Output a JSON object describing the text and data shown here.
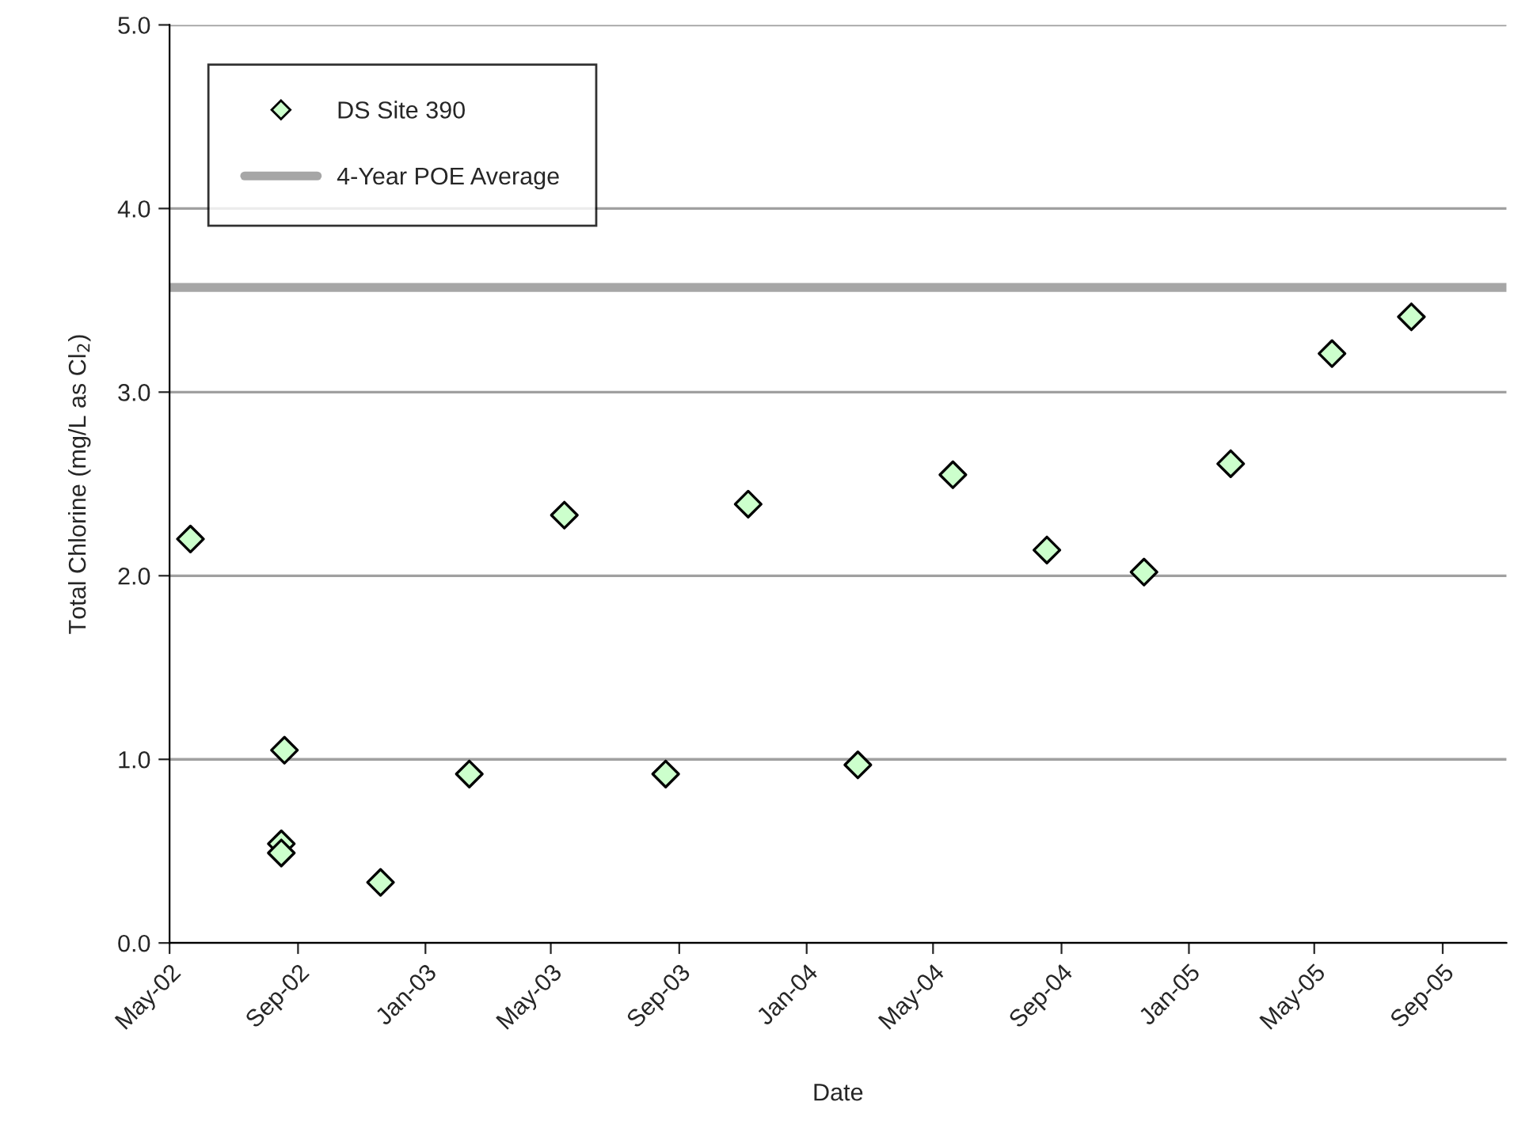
{
  "chart_data": {
    "type": "scatter",
    "xlabel": "Date",
    "ylabel": "Total Chlorine (mg/L as Cl$_{2}$)",
    "x": [
      "2002-05-21",
      "2002-08-19",
      "2002-08-16",
      "2002-08-16",
      "2002-11-19",
      "2003-02-12",
      "2003-05-14",
      "2003-08-19",
      "2003-11-06",
      "2004-02-19",
      "2004-05-20",
      "2004-08-18",
      "2004-11-19",
      "2005-02-10",
      "2005-05-18",
      "2005-08-02"
    ],
    "series": [
      {
        "name": "DS Site 390",
        "color": "#ccffcc",
        "values": [
          2.2,
          1.05,
          0.54,
          0.49,
          0.33,
          0.92,
          2.33,
          0.92,
          2.39,
          0.97,
          2.55,
          2.14,
          2.02,
          2.61,
          3.21,
          3.41
        ]
      }
    ],
    "ref_lines": [
      {
        "axis": "y",
        "value": 3.57,
        "label": "4-Year POE Average",
        "color": "#a6a6a6",
        "line_style": "solid"
      }
    ],
    "xlim": [
      "2002-05-01",
      "2005-11-01"
    ],
    "xticks": [
      {
        "value": "2002-05-01",
        "label": "May-02"
      },
      {
        "value": "2002-09-01",
        "label": "Sep-02"
      },
      {
        "value": "2003-01-01",
        "label": "Jan-03"
      },
      {
        "value": "2003-05-01",
        "label": "May-03"
      },
      {
        "value": "2003-09-01",
        "label": "Sep-03"
      },
      {
        "value": "2004-01-01",
        "label": "Jan-04"
      },
      {
        "value": "2004-05-01",
        "label": "May-04"
      },
      {
        "value": "2004-09-01",
        "label": "Sep-04"
      },
      {
        "value": "2005-01-01",
        "label": "Jan-05"
      },
      {
        "value": "2005-05-01",
        "label": "May-05"
      },
      {
        "value": "2005-09-01",
        "label": "Sep-05"
      }
    ],
    "ylim": [
      0,
      5
    ],
    "yticks": [
      {
        "value": 0,
        "label": "0.0"
      },
      {
        "value": 1,
        "label": "1.0"
      },
      {
        "value": 2,
        "label": "2.0"
      },
      {
        "value": 3,
        "label": "3.0"
      },
      {
        "value": 4,
        "label": "4.0"
      },
      {
        "value": 5,
        "label": "5.0"
      }
    ],
    "grid": "y",
    "legend": "top left",
    "marker": "diamond"
  }
}
